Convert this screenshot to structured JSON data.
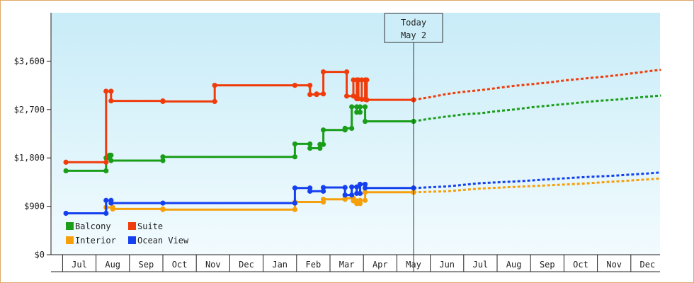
{
  "chart_data": {
    "type": "line",
    "title": "",
    "xlabel": "",
    "ylabel": "",
    "ylim": [
      0,
      4500
    ],
    "yticks": [
      0,
      900,
      1800,
      2700,
      3600
    ],
    "ytick_labels": [
      "$0",
      "$900",
      "$1,800",
      "$2,700",
      "$3,600"
    ],
    "month_labels": [
      "Jul",
      "Aug",
      "Sep",
      "Oct",
      "Nov",
      "Dec",
      "Jan",
      "Feb",
      "Mar",
      "Apr",
      "May",
      "Jun",
      "Jul",
      "Aug",
      "Sep",
      "Oct",
      "Nov",
      "Dec"
    ],
    "today": {
      "line1": "Today",
      "line2": "May 2",
      "x": 10.0
    },
    "grid": false,
    "legend_position": "bottom-left",
    "series": [
      {
        "name": "Balcony",
        "color": "#1a9e1a",
        "points": [
          [
            -0.4,
            1560
          ],
          [
            0.8,
            1560
          ],
          [
            0.8,
            1800
          ],
          [
            0.9,
            1800
          ],
          [
            0.9,
            1850
          ],
          [
            0.95,
            1850
          ],
          [
            0.95,
            1750
          ],
          [
            2.5,
            1750
          ],
          [
            2.5,
            1820
          ],
          [
            6.45,
            1820
          ],
          [
            6.45,
            2060
          ],
          [
            6.9,
            2060
          ],
          [
            6.9,
            1980
          ],
          [
            7.2,
            1980
          ],
          [
            7.2,
            2050
          ],
          [
            7.3,
            2050
          ],
          [
            7.3,
            2320
          ],
          [
            7.95,
            2320
          ],
          [
            7.95,
            2350
          ],
          [
            8.15,
            2350
          ],
          [
            8.15,
            2750
          ],
          [
            8.3,
            2750
          ],
          [
            8.3,
            2650
          ],
          [
            8.4,
            2650
          ],
          [
            8.4,
            2750
          ],
          [
            8.55,
            2750
          ],
          [
            8.55,
            2480
          ],
          [
            10.0,
            2480
          ]
        ],
        "forecast": [
          [
            10.0,
            2480
          ],
          [
            10.5,
            2530
          ],
          [
            11.0,
            2570
          ],
          [
            11.5,
            2610
          ],
          [
            12.0,
            2630
          ],
          [
            12.5,
            2670
          ],
          [
            13.0,
            2700
          ],
          [
            13.5,
            2740
          ],
          [
            14.0,
            2770
          ],
          [
            14.5,
            2800
          ],
          [
            15.0,
            2830
          ],
          [
            15.5,
            2860
          ],
          [
            16.0,
            2880
          ],
          [
            16.5,
            2910
          ],
          [
            17.0,
            2940
          ],
          [
            17.4,
            2960
          ]
        ]
      },
      {
        "name": "Suite",
        "color": "#f03c0a",
        "points": [
          [
            -0.4,
            1720
          ],
          [
            0.8,
            1720
          ],
          [
            0.8,
            3040
          ],
          [
            0.95,
            3040
          ],
          [
            0.95,
            2860
          ],
          [
            2.5,
            2860
          ],
          [
            2.5,
            2850
          ],
          [
            4.05,
            2850
          ],
          [
            4.05,
            3150
          ],
          [
            6.45,
            3150
          ],
          [
            6.45,
            3150
          ],
          [
            6.9,
            3150
          ],
          [
            6.9,
            2980
          ],
          [
            7.1,
            2980
          ],
          [
            7.1,
            2990
          ],
          [
            7.3,
            2990
          ],
          [
            7.3,
            3400
          ],
          [
            8.0,
            3400
          ],
          [
            8.0,
            2950
          ],
          [
            8.2,
            2950
          ],
          [
            8.2,
            3250
          ],
          [
            8.3,
            3250
          ],
          [
            8.3,
            2900
          ],
          [
            8.35,
            2900
          ],
          [
            8.35,
            3250
          ],
          [
            8.45,
            3250
          ],
          [
            8.45,
            2890
          ],
          [
            8.55,
            2890
          ],
          [
            8.55,
            3250
          ],
          [
            8.6,
            3250
          ],
          [
            8.6,
            2880
          ],
          [
            10.0,
            2880
          ]
        ],
        "forecast": [
          [
            10.0,
            2880
          ],
          [
            10.5,
            2930
          ],
          [
            11.0,
            2990
          ],
          [
            11.5,
            3030
          ],
          [
            12.0,
            3060
          ],
          [
            12.5,
            3100
          ],
          [
            13.0,
            3140
          ],
          [
            13.5,
            3170
          ],
          [
            14.0,
            3200
          ],
          [
            14.5,
            3240
          ],
          [
            15.0,
            3270
          ],
          [
            15.5,
            3300
          ],
          [
            16.0,
            3330
          ],
          [
            16.5,
            3370
          ],
          [
            17.0,
            3410
          ],
          [
            17.4,
            3440
          ]
        ]
      },
      {
        "name": "Interior",
        "color": "#f5a00a",
        "points": [
          [
            0.8,
            880
          ],
          [
            1.0,
            880
          ],
          [
            1.0,
            850
          ],
          [
            2.5,
            850
          ],
          [
            2.5,
            840
          ],
          [
            6.45,
            840
          ],
          [
            6.45,
            980
          ],
          [
            7.3,
            980
          ],
          [
            7.3,
            1030
          ],
          [
            7.95,
            1030
          ],
          [
            7.95,
            1050
          ],
          [
            8.2,
            1050
          ],
          [
            8.2,
            1000
          ],
          [
            8.3,
            1000
          ],
          [
            8.3,
            950
          ],
          [
            8.4,
            950
          ],
          [
            8.4,
            1010
          ],
          [
            8.55,
            1010
          ],
          [
            8.55,
            1160
          ],
          [
            10.0,
            1160
          ]
        ],
        "forecast": [
          [
            10.0,
            1160
          ],
          [
            11.0,
            1180
          ],
          [
            12.0,
            1230
          ],
          [
            13.0,
            1260
          ],
          [
            14.0,
            1290
          ],
          [
            15.0,
            1320
          ],
          [
            16.0,
            1360
          ],
          [
            17.0,
            1400
          ],
          [
            17.4,
            1420
          ]
        ]
      },
      {
        "name": "Ocean View",
        "color": "#1440f0",
        "points": [
          [
            -0.4,
            770
          ],
          [
            0.8,
            770
          ],
          [
            0.8,
            1010
          ],
          [
            0.95,
            1010
          ],
          [
            0.95,
            960
          ],
          [
            2.5,
            960
          ],
          [
            2.5,
            960
          ],
          [
            6.45,
            960
          ],
          [
            6.45,
            1240
          ],
          [
            6.9,
            1240
          ],
          [
            6.9,
            1180
          ],
          [
            7.3,
            1180
          ],
          [
            7.3,
            1250
          ],
          [
            7.95,
            1250
          ],
          [
            7.95,
            1110
          ],
          [
            8.15,
            1110
          ],
          [
            8.15,
            1260
          ],
          [
            8.3,
            1260
          ],
          [
            8.3,
            1140
          ],
          [
            8.4,
            1140
          ],
          [
            8.4,
            1310
          ],
          [
            8.55,
            1310
          ],
          [
            8.55,
            1240
          ],
          [
            10.0,
            1240
          ]
        ],
        "forecast": [
          [
            10.0,
            1240
          ],
          [
            11.0,
            1270
          ],
          [
            12.0,
            1330
          ],
          [
            13.0,
            1360
          ],
          [
            14.0,
            1400
          ],
          [
            15.0,
            1440
          ],
          [
            16.0,
            1470
          ],
          [
            17.0,
            1510
          ],
          [
            17.4,
            1530
          ]
        ]
      }
    ]
  }
}
